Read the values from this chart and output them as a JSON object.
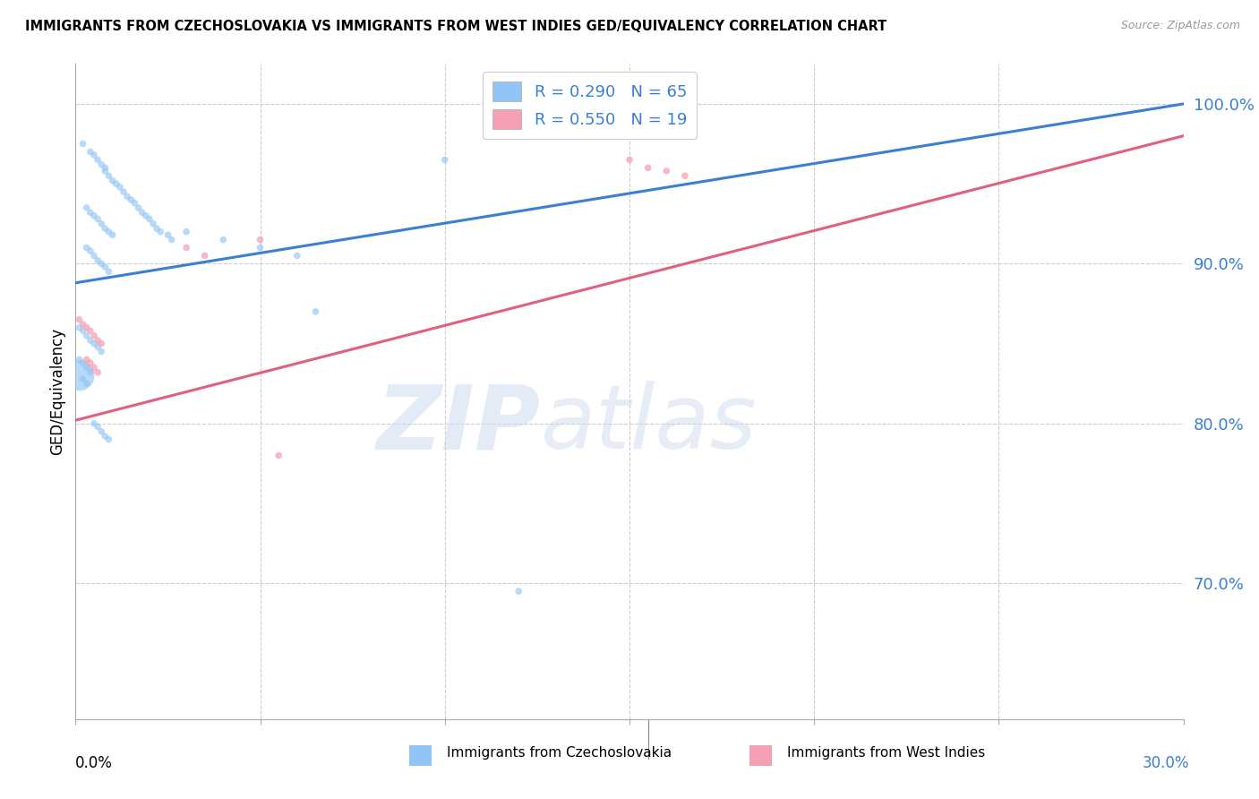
{
  "title": "IMMIGRANTS FROM CZECHOSLOVAKIA VS IMMIGRANTS FROM WEST INDIES GED/EQUIVALENCY CORRELATION CHART",
  "source": "Source: ZipAtlas.com",
  "ylabel": "GED/Equivalency",
  "ytick_labels": [
    "100.0%",
    "90.0%",
    "80.0%",
    "70.0%"
  ],
  "ytick_values": [
    1.0,
    0.9,
    0.8,
    0.7
  ],
  "xlim": [
    0.0,
    0.3
  ],
  "ylim": [
    0.615,
    1.025
  ],
  "watermark_zip": "ZIP",
  "watermark_atlas": "atlas",
  "legend_blue_r": "R = 0.290",
  "legend_blue_n": "N = 65",
  "legend_pink_r": "R = 0.550",
  "legend_pink_n": "N = 19",
  "blue_color": "#92c5f5",
  "pink_color": "#f5a0b5",
  "blue_line_color": "#3a7fd4",
  "pink_line_color": "#e06080",
  "blue_label": "Immigrants from Czechoslovakia",
  "pink_label": "Immigrants from West Indies",
  "blue_scatter_x": [
    0.002,
    0.004,
    0.005,
    0.006,
    0.007,
    0.008,
    0.008,
    0.009,
    0.01,
    0.011,
    0.012,
    0.013,
    0.014,
    0.015,
    0.016,
    0.017,
    0.018,
    0.019,
    0.02,
    0.021,
    0.022,
    0.023,
    0.025,
    0.026,
    0.003,
    0.004,
    0.005,
    0.006,
    0.007,
    0.008,
    0.009,
    0.01,
    0.003,
    0.004,
    0.005,
    0.006,
    0.007,
    0.008,
    0.009,
    0.001,
    0.002,
    0.003,
    0.004,
    0.005,
    0.006,
    0.007,
    0.001,
    0.002,
    0.003,
    0.004,
    0.001,
    0.002,
    0.003,
    0.03,
    0.04,
    0.05,
    0.06,
    0.065,
    0.005,
    0.006,
    0.007,
    0.008,
    0.009,
    0.1,
    0.12
  ],
  "blue_scatter_y": [
    0.975,
    0.97,
    0.968,
    0.965,
    0.962,
    0.96,
    0.958,
    0.955,
    0.952,
    0.95,
    0.948,
    0.945,
    0.942,
    0.94,
    0.938,
    0.935,
    0.932,
    0.93,
    0.928,
    0.925,
    0.922,
    0.92,
    0.918,
    0.915,
    0.935,
    0.932,
    0.93,
    0.928,
    0.925,
    0.922,
    0.92,
    0.918,
    0.91,
    0.908,
    0.905,
    0.902,
    0.9,
    0.898,
    0.895,
    0.86,
    0.858,
    0.855,
    0.852,
    0.85,
    0.848,
    0.845,
    0.84,
    0.838,
    0.835,
    0.832,
    0.83,
    0.828,
    0.825,
    0.92,
    0.915,
    0.91,
    0.905,
    0.87,
    0.8,
    0.798,
    0.795,
    0.792,
    0.79,
    0.965,
    0.695
  ],
  "blue_scatter_sizes": [
    30,
    30,
    30,
    30,
    30,
    30,
    30,
    30,
    30,
    30,
    30,
    30,
    30,
    30,
    30,
    30,
    30,
    30,
    30,
    30,
    30,
    30,
    30,
    30,
    30,
    30,
    30,
    30,
    30,
    30,
    30,
    30,
    30,
    30,
    30,
    30,
    30,
    30,
    30,
    30,
    30,
    30,
    30,
    30,
    30,
    30,
    30,
    30,
    30,
    30,
    600,
    30,
    30,
    30,
    30,
    30,
    30,
    30,
    30,
    30,
    30,
    30,
    30,
    30,
    30
  ],
  "pink_scatter_x": [
    0.001,
    0.002,
    0.003,
    0.004,
    0.005,
    0.006,
    0.007,
    0.003,
    0.004,
    0.005,
    0.006,
    0.03,
    0.035,
    0.05,
    0.055,
    0.15,
    0.155,
    0.16,
    0.165
  ],
  "pink_scatter_y": [
    0.865,
    0.862,
    0.86,
    0.858,
    0.855,
    0.852,
    0.85,
    0.84,
    0.838,
    0.835,
    0.832,
    0.91,
    0.905,
    0.915,
    0.78,
    0.965,
    0.96,
    0.958,
    0.955
  ],
  "pink_scatter_sizes": [
    30,
    30,
    30,
    30,
    30,
    30,
    30,
    30,
    30,
    30,
    30,
    30,
    30,
    30,
    30,
    30,
    30,
    30,
    30
  ],
  "blue_line_x": [
    0.0,
    0.3
  ],
  "blue_line_y": [
    0.888,
    1.0
  ],
  "pink_line_x": [
    0.0,
    0.3
  ],
  "pink_line_y": [
    0.802,
    0.98
  ]
}
